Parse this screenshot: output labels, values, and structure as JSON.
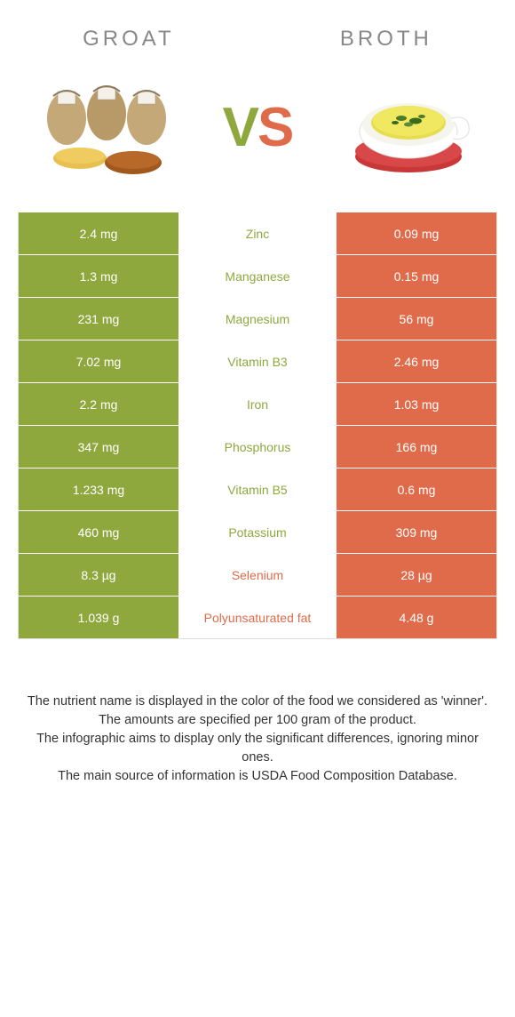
{
  "foods": {
    "left": {
      "name": "GROAT",
      "color": "#8fa83e"
    },
    "right": {
      "name": "BROTH",
      "color": "#e06b4a"
    }
  },
  "vs": {
    "v": "V",
    "s": "S",
    "v_color": "#8fa83e",
    "s_color": "#e06b4a"
  },
  "colors": {
    "left_bg": "#8fa83e",
    "right_bg": "#e06b4a",
    "border": "#dedede",
    "title_text": "#888888",
    "footnote_text": "#333333"
  },
  "rows": [
    {
      "nutrient": "Zinc",
      "left": "2.4 mg",
      "right": "0.09 mg",
      "winner": "left"
    },
    {
      "nutrient": "Manganese",
      "left": "1.3 mg",
      "right": "0.15 mg",
      "winner": "left"
    },
    {
      "nutrient": "Magnesium",
      "left": "231 mg",
      "right": "56 mg",
      "winner": "left"
    },
    {
      "nutrient": "Vitamin B3",
      "left": "7.02 mg",
      "right": "2.46 mg",
      "winner": "left"
    },
    {
      "nutrient": "Iron",
      "left": "2.2 mg",
      "right": "1.03 mg",
      "winner": "left"
    },
    {
      "nutrient": "Phosphorus",
      "left": "347 mg",
      "right": "166 mg",
      "winner": "left"
    },
    {
      "nutrient": "Vitamin B5",
      "left": "1.233 mg",
      "right": "0.6 mg",
      "winner": "left"
    },
    {
      "nutrient": "Potassium",
      "left": "460 mg",
      "right": "309 mg",
      "winner": "left"
    },
    {
      "nutrient": "Selenium",
      "left": "8.3 µg",
      "right": "28 µg",
      "winner": "right"
    },
    {
      "nutrient": "Polyunsaturated fat",
      "left": "1.039 g",
      "right": "4.48 g",
      "winner": "right"
    }
  ],
  "footnotes": [
    "The nutrient name is displayed in the color of the food we considered as 'winner'.",
    "The amounts are specified per 100 gram of the product.",
    "The infographic aims to display only the significant differences, ignoring minor ones.",
    "The main source of information is USDA Food Composition Database."
  ]
}
